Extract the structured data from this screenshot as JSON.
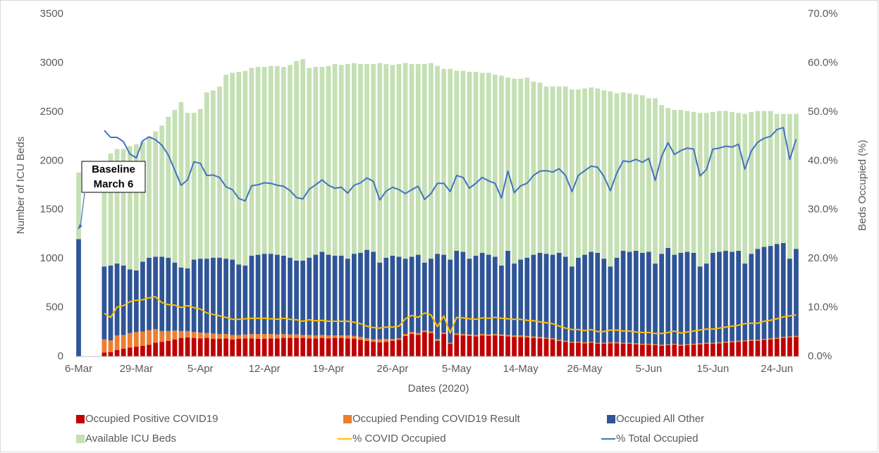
{
  "chart_data": {
    "type": "bar",
    "x_label": "Dates (2020)",
    "y_label": "Number of ICU Beds",
    "y2_label": "Beds Occupied (%)",
    "annotation": [
      "Baseline",
      "March 6"
    ],
    "categories": [
      "6-Mar",
      null,
      null,
      null,
      null,
      null,
      null,
      null,
      null,
      "29-Mar",
      null,
      null,
      null,
      null,
      null,
      null,
      null,
      null,
      null,
      "5-Apr",
      null,
      null,
      null,
      null,
      null,
      null,
      null,
      null,
      null,
      "12-Apr",
      null,
      null,
      null,
      null,
      null,
      null,
      null,
      null,
      null,
      "19-Apr",
      null,
      null,
      null,
      null,
      null,
      null,
      null,
      null,
      null,
      "26-Apr",
      null,
      null,
      null,
      null,
      null,
      null,
      null,
      null,
      null,
      "5-May",
      null,
      null,
      null,
      null,
      null,
      null,
      null,
      null,
      null,
      "14-May",
      null,
      null,
      null,
      null,
      null,
      null,
      null,
      null,
      null,
      "26-May",
      null,
      null,
      null,
      null,
      null,
      null,
      null,
      null,
      null,
      "5-Jun",
      null,
      null,
      null,
      null,
      null,
      null,
      null,
      null,
      null,
      "15-Jun",
      null,
      null,
      null,
      null,
      null,
      null,
      null,
      null,
      null,
      "24-Jun",
      null,
      null,
      null
    ],
    "series": [
      {
        "name": "Occupied Positive COVID19",
        "type": "bar",
        "color": "#c00000",
        "values": [
          null,
          null,
          null,
          null,
          40,
          45,
          65,
          80,
          90,
          100,
          110,
          120,
          140,
          150,
          160,
          175,
          190,
          195,
          190,
          185,
          190,
          180,
          180,
          185,
          175,
          180,
          185,
          185,
          180,
          180,
          185,
          185,
          190,
          190,
          190,
          190,
          185,
          185,
          190,
          185,
          190,
          190,
          185,
          180,
          170,
          160,
          150,
          145,
          150,
          160,
          170,
          210,
          230,
          220,
          250,
          240,
          160,
          230,
          130,
          220,
          215,
          210,
          205,
          215,
          210,
          215,
          210,
          205,
          200,
          200,
          195,
          190,
          185,
          180,
          175,
          160,
          150,
          140,
          140,
          135,
          140,
          130,
          130,
          135,
          135,
          130,
          130,
          125,
          120,
          120,
          115,
          110,
          115,
          120,
          110,
          115,
          120,
          125,
          130,
          130,
          135,
          140,
          145,
          150,
          155,
          160,
          160,
          170,
          175,
          180,
          190,
          195,
          200
        ]
      },
      {
        "name": "Occupied Pending COVID19 Result",
        "type": "bar",
        "color": "#ed7d31",
        "values": [
          null,
          null,
          null,
          null,
          135,
          120,
          150,
          140,
          150,
          150,
          145,
          150,
          140,
          110,
          100,
          90,
          70,
          65,
          60,
          60,
          50,
          55,
          50,
          45,
          45,
          40,
          40,
          45,
          50,
          50,
          45,
          40,
          40,
          35,
          35,
          30,
          35,
          30,
          30,
          30,
          25,
          25,
          30,
          30,
          30,
          25,
          25,
          30,
          30,
          20,
          15,
          20,
          20,
          20,
          15,
          15,
          20,
          15,
          10,
          15,
          15,
          15,
          15,
          15,
          15,
          15,
          15,
          15,
          15,
          15,
          15,
          15,
          15,
          10,
          10,
          10,
          10,
          10,
          10,
          10,
          10,
          10,
          10,
          10,
          10,
          10,
          10,
          10,
          10,
          10,
          10,
          10,
          10,
          10,
          10,
          10,
          10,
          10,
          10,
          10,
          10,
          10,
          10,
          10,
          10,
          10,
          10,
          10,
          10,
          10,
          10,
          10,
          10
        ]
      },
      {
        "name": "Occupied All Other",
        "type": "bar",
        "color": "#2f5597",
        "values": [
          1200,
          null,
          null,
          null,
          745,
          765,
          735,
          710,
          650,
          630,
          715,
          740,
          740,
          760,
          750,
          695,
          650,
          640,
          740,
          755,
          760,
          775,
          780,
          770,
          770,
          720,
          705,
          800,
          810,
          820,
          820,
          815,
          800,
          785,
          755,
          760,
          790,
          825,
          850,
          825,
          815,
          815,
          785,
          840,
          860,
          905,
          895,
          785,
          830,
          850,
          835,
          770,
          770,
          800,
          695,
          745,
          870,
          795,
          850,
          845,
          840,
          775,
          810,
          830,
          815,
          790,
          705,
          860,
          735,
          775,
          800,
          835,
          860,
          860,
          855,
          890,
          860,
          770,
          860,
          895,
          920,
          920,
          860,
          775,
          865,
          940,
          930,
          945,
          930,
          940,
          825,
          930,
          985,
          910,
          940,
          945,
          930,
          785,
          810,
          920,
          925,
          930,
          915,
          920,
          785,
          880,
          930,
          940,
          945,
          960,
          960,
          795,
          890
        ]
      },
      {
        "name": "Available ICU Beds",
        "type": "bar",
        "color": "#c5e0b4",
        "values": [
          680,
          null,
          null,
          null,
          1070,
          1145,
          1170,
          1190,
          1260,
          1290,
          1230,
          1240,
          1280,
          1340,
          1440,
          1560,
          1690,
          1590,
          1500,
          1530,
          1700,
          1710,
          1750,
          1880,
          1910,
          1970,
          1990,
          1920,
          1920,
          1910,
          1920,
          1930,
          1930,
          1970,
          2040,
          2060,
          1940,
          1920,
          1890,
          1930,
          1960,
          1950,
          1990,
          1950,
          1930,
          1900,
          1920,
          2040,
          1980,
          1950,
          1970,
          2000,
          1970,
          1950,
          2030,
          2000,
          1920,
          1900,
          1950,
          1840,
          1850,
          1910,
          1880,
          1840,
          1860,
          1860,
          1940,
          1770,
          1890,
          1850,
          1840,
          1770,
          1740,
          1710,
          1720,
          1700,
          1740,
          1810,
          1720,
          1700,
          1680,
          1680,
          1720,
          1790,
          1680,
          1620,
          1620,
          1600,
          1610,
          1570,
          1690,
          1520,
          1430,
          1480,
          1460,
          1440,
          1440,
          1570,
          1540,
          1440,
          1440,
          1430,
          1430,
          1410,
          1530,
          1450,
          1410,
          1390,
          1380,
          1330,
          1320,
          1480,
          1380
        ]
      },
      {
        "name": "% COVID Occupied",
        "type": "line",
        "axis": "y2",
        "color": "#ffc000",
        "values": [
          null,
          null,
          null,
          null,
          8.8,
          8.0,
          10.1,
          10.4,
          11.2,
          11.5,
          11.6,
          12.0,
          12.2,
          11.0,
          10.6,
          10.5,
          10.0,
          10.4,
          10.0,
          9.7,
          8.9,
          8.6,
          8.3,
          8.0,
          7.6,
          7.6,
          7.7,
          7.8,
          7.8,
          7.8,
          7.7,
          7.6,
          7.8,
          7.6,
          7.5,
          7.2,
          7.5,
          7.3,
          7.4,
          7.2,
          7.2,
          7.2,
          7.2,
          7.0,
          6.7,
          6.2,
          5.9,
          5.8,
          6.0,
          6.0,
          6.2,
          7.7,
          8.4,
          8.0,
          8.9,
          8.5,
          6.1,
          8.3,
          4.8,
          8.0,
          7.9,
          7.7,
          7.6,
          7.9,
          7.8,
          8.0,
          7.8,
          7.7,
          7.6,
          7.6,
          7.4,
          7.3,
          7.1,
          6.9,
          6.7,
          6.2,
          5.8,
          5.5,
          5.5,
          5.3,
          5.5,
          5.1,
          5.1,
          5.4,
          5.4,
          5.2,
          5.2,
          5.0,
          4.9,
          4.9,
          4.7,
          4.7,
          4.9,
          5.2,
          4.8,
          5.0,
          5.2,
          5.4,
          5.6,
          5.6,
          5.8,
          6.0,
          6.2,
          6.4,
          6.7,
          6.8,
          6.8,
          7.2,
          7.4,
          7.7,
          8.1,
          8.3,
          8.5
        ]
      },
      {
        "name": "% Total Occupied",
        "type": "line",
        "axis": "y2",
        "color": "#4472c4",
        "values": [
          null,
          null,
          null,
          null,
          46.2,
          44.8,
          44.8,
          43.9,
          41.4,
          40.6,
          44.1,
          44.9,
          44.3,
          43.2,
          41.2,
          38.1,
          35.0,
          36.1,
          39.8,
          39.5,
          37.0,
          37.1,
          36.6,
          34.7,
          34.1,
          32.3,
          31.8,
          34.9,
          35.1,
          35.5,
          35.4,
          35.0,
          34.8,
          33.9,
          32.5,
          32.2,
          34.2,
          35.1,
          36.1,
          35.0,
          34.4,
          34.6,
          33.4,
          35.0,
          35.5,
          36.5,
          35.8,
          32.0,
          33.8,
          34.6,
          34.1,
          33.3,
          34.1,
          34.8,
          32.1,
          33.3,
          35.4,
          35.4,
          33.7,
          37.0,
          36.6,
          34.4,
          35.4,
          36.6,
          35.9,
          35.4,
          32.4,
          37.9,
          33.5,
          34.9,
          35.4,
          37.0,
          37.9,
          38.0,
          37.7,
          38.4,
          37.0,
          33.7,
          37.0,
          38.0,
          38.9,
          38.7,
          36.8,
          33.9,
          37.5,
          40.0,
          39.8,
          40.3,
          39.7,
          40.5,
          36.0,
          40.9,
          43.7,
          41.3,
          42.1,
          42.6,
          42.4,
          36.9,
          38.2,
          42.4,
          42.6,
          43.0,
          42.8,
          43.4,
          38.3,
          42.0,
          43.8,
          44.6,
          45.0,
          46.4,
          46.8,
          40.3,
          44.4
        ]
      }
    ],
    "stacked": true,
    "ylim": [
      0,
      3500
    ],
    "yticks": [
      0,
      500,
      1000,
      1500,
      2000,
      2500,
      3000,
      3500
    ],
    "y2lim": [
      0,
      70
    ],
    "y2ticks": [
      {
        "value": 0,
        "label": "0.0%"
      },
      {
        "value": 10,
        "label": "10.0%"
      },
      {
        "value": 20,
        "label": "20.0%"
      },
      {
        "value": 30,
        "label": "30.0%"
      },
      {
        "value": 40,
        "label": "40.0%"
      },
      {
        "value": 50,
        "label": "50.0%"
      },
      {
        "value": 60,
        "label": "60.0%"
      },
      {
        "value": 70,
        "label": "70.0%"
      }
    ],
    "grid": false,
    "legend": "bottom"
  }
}
